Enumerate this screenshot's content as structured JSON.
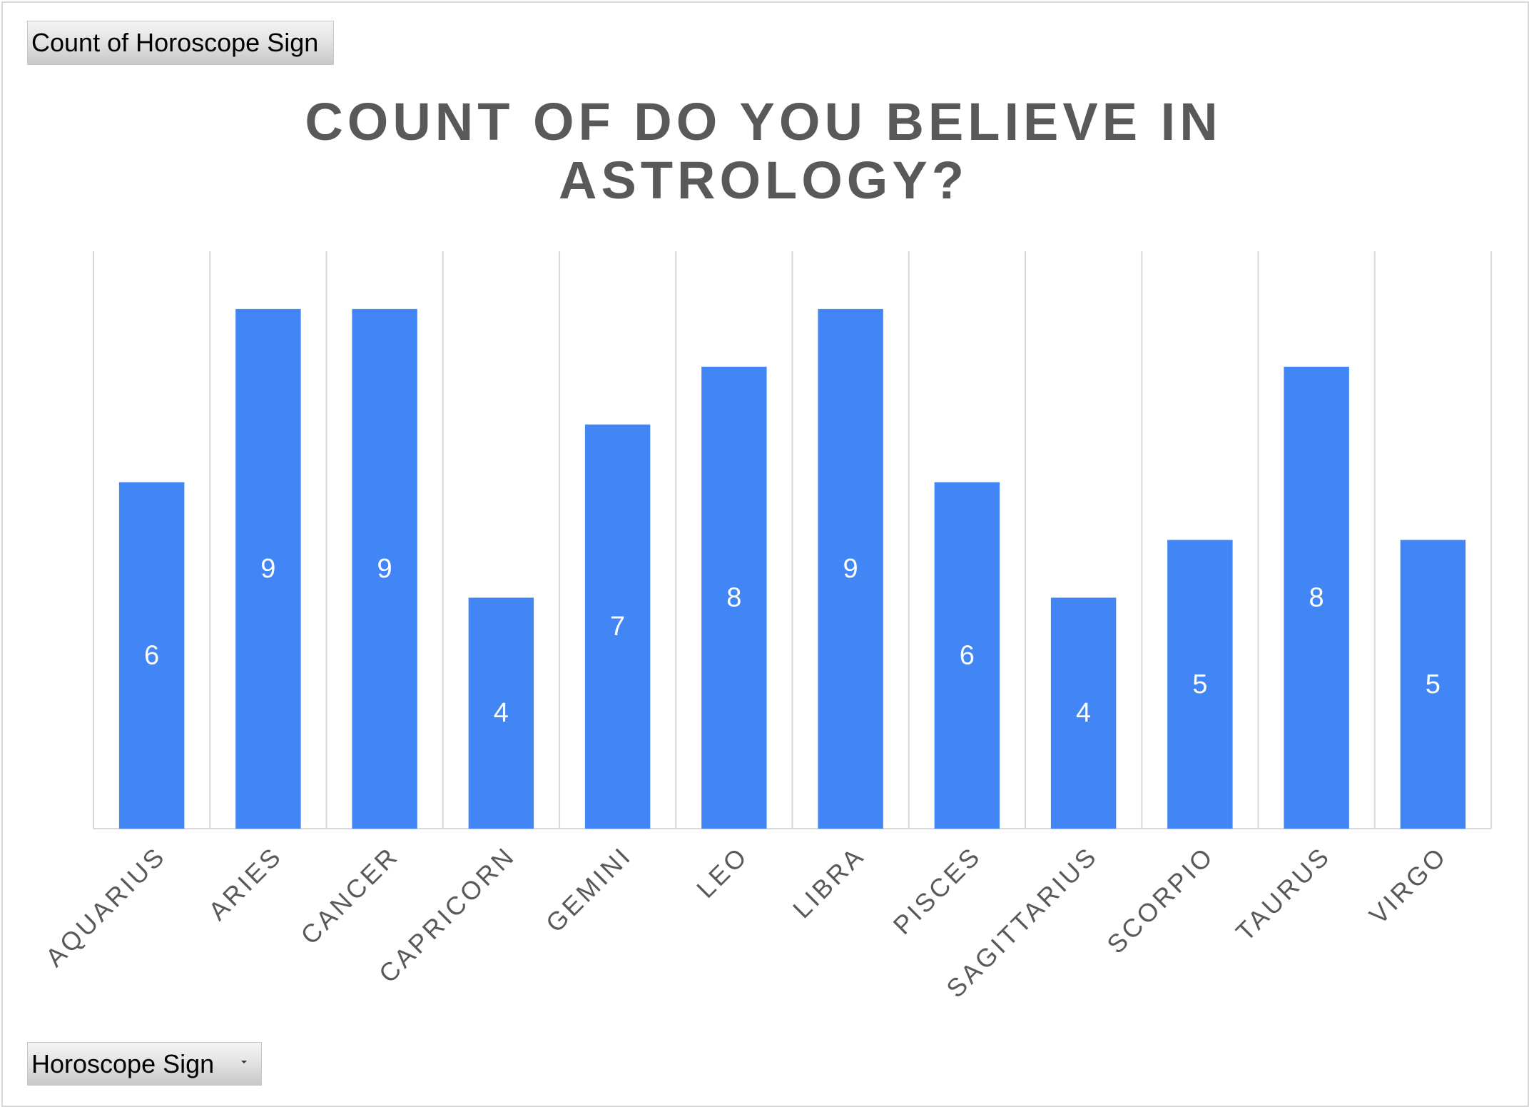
{
  "pivot": {
    "values_field_label": "Count of Horoscope Sign",
    "axis_field_label": "Horoscope Sign"
  },
  "chart_data": {
    "type": "bar",
    "title": "COUNT OF DO YOU BELIEVE IN ASTROLOGY?",
    "categories": [
      "AQUARIUS",
      "ARIES",
      "CANCER",
      "CAPRICORN",
      "GEMINI",
      "LEO",
      "LIBRA",
      "PISCES",
      "SAGITTARIUS",
      "SCORPIO",
      "TAURUS",
      "VIRGO"
    ],
    "series": [
      {
        "values": [
          6,
          9,
          9,
          4,
          7,
          8,
          9,
          6,
          4,
          5,
          8,
          5
        ]
      }
    ],
    "ylim": [
      0,
      10
    ],
    "grid": true,
    "data_labels": true,
    "legend": "none",
    "colors": {
      "bar": "#4285f4",
      "data_label": "#ffffff",
      "grid": "#d9d9d9",
      "axis_text": "#595959"
    }
  }
}
